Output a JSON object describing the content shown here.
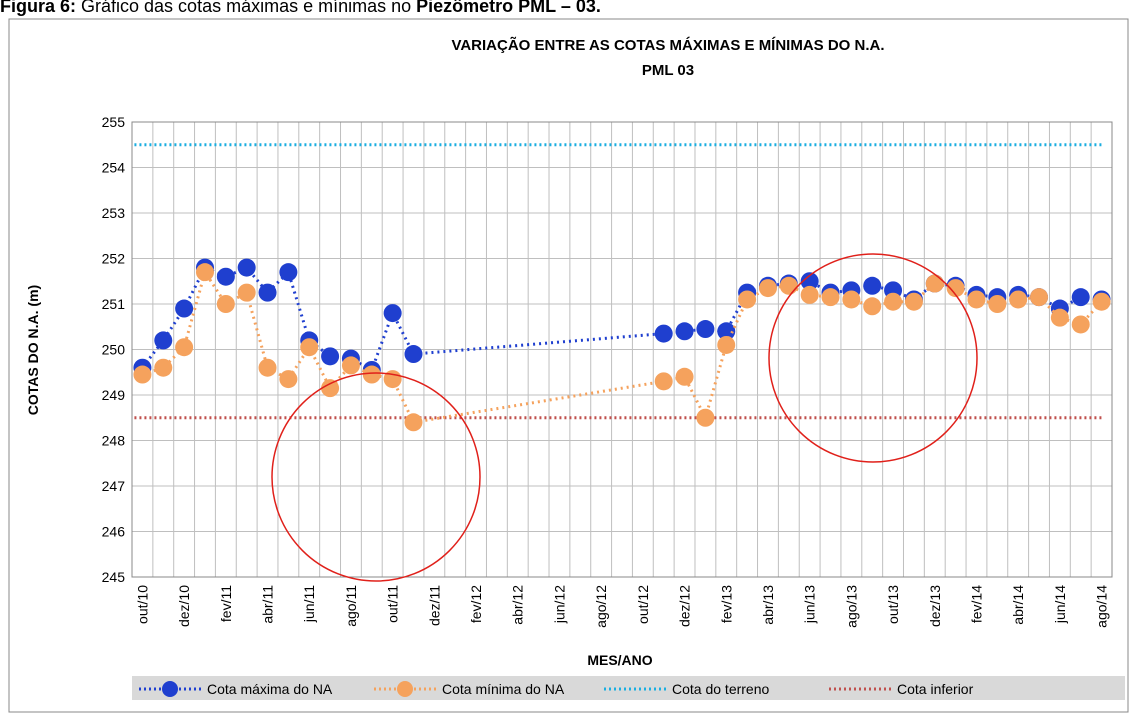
{
  "caption": {
    "label": "Figura 6:",
    "text": " Gráfico das cotas máximas e mínimas no ",
    "emphasis": "Piezômetro PML – 03."
  },
  "chart_data": {
    "type": "line",
    "title": "VARIAÇÃO ENTRE AS COTAS MÁXIMAS E MÍNIMAS DO N.A.",
    "subtitle": "PML 03",
    "x_label": "MES/ANO",
    "y_label": "COTAS  DO N.A. (m)",
    "categories": [
      "out/10",
      null,
      "dez/10",
      null,
      "fev/11",
      null,
      "abr/11",
      null,
      "jun/11",
      null,
      "ago/11",
      null,
      "out/11",
      null,
      "dez/11",
      null,
      "fev/12",
      null,
      "abr/12",
      null,
      "jun/12",
      null,
      "ago/12",
      null,
      "out/12",
      null,
      "dez/12",
      null,
      "fev/13",
      null,
      "abr/13",
      null,
      "jun/13",
      null,
      "ago/13",
      null,
      "out/13",
      null,
      "dez/13",
      null,
      "fev/14",
      null,
      "abr/14",
      null,
      "jun/14",
      null,
      "ago/14"
    ],
    "series": [
      {
        "name": "Cota máxima do NA",
        "color": "#1f3fcf",
        "values": [
          249.6,
          250.2,
          250.9,
          251.8,
          251.6,
          251.8,
          251.25,
          251.7,
          250.2,
          249.85,
          249.8,
          249.55,
          250.8,
          249.9,
          null,
          null,
          null,
          null,
          null,
          null,
          null,
          null,
          null,
          null,
          null,
          250.35,
          250.4,
          250.45,
          250.4,
          251.25,
          251.4,
          251.45,
          251.5,
          251.25,
          251.3,
          251.4,
          251.3,
          251.1,
          251.45,
          251.4,
          251.2,
          251.15,
          251.2,
          251.15,
          250.9,
          251.15,
          251.1
        ]
      },
      {
        "name": "Cota mínima do NA",
        "color": "#f5a25d",
        "values": [
          249.45,
          249.6,
          250.05,
          251.7,
          251.0,
          251.25,
          249.6,
          249.35,
          250.05,
          249.15,
          249.65,
          249.45,
          249.35,
          248.4,
          null,
          null,
          null,
          null,
          null,
          null,
          null,
          null,
          null,
          null,
          null,
          249.3,
          249.4,
          248.5,
          250.1,
          251.1,
          251.35,
          251.4,
          251.2,
          251.15,
          251.1,
          250.95,
          251.05,
          251.05,
          251.45,
          251.35,
          251.1,
          251.0,
          251.1,
          251.15,
          250.7,
          250.55,
          251.05
        ]
      }
    ],
    "reference_lines": [
      {
        "name": "Cota do terreno",
        "color": "#1aaee0",
        "value": 254.5
      },
      {
        "name": "Cota inferior",
        "color": "#c0504d",
        "value": 248.5
      }
    ],
    "ylim": [
      245,
      255
    ],
    "yticks": [
      245,
      246,
      247,
      248,
      249,
      250,
      251,
      252,
      253,
      254,
      255
    ],
    "grid": true
  }
}
